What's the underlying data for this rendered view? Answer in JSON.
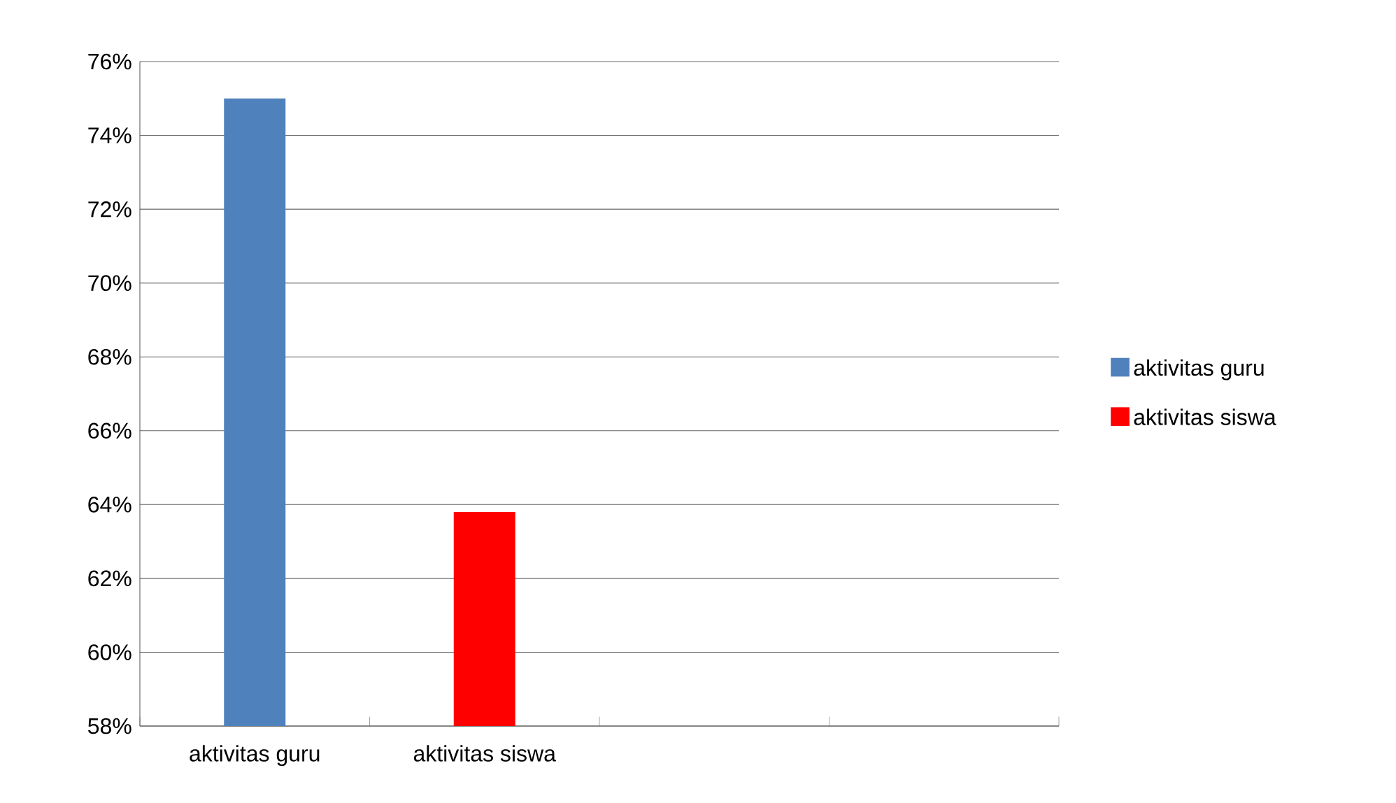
{
  "chart_data": {
    "type": "bar",
    "categories": [
      "aktivitas guru",
      "aktivitas siswa",
      null,
      null
    ],
    "series": [
      {
        "name": "aktivitas guru",
        "color": "#4f81bd",
        "values": [
          75,
          null,
          null,
          null
        ]
      },
      {
        "name": "aktivitas siswa",
        "color": "#ff0000",
        "values": [
          null,
          63.8,
          null,
          null
        ]
      }
    ],
    "ylim": [
      58,
      76
    ],
    "yticks": [
      {
        "value": 58,
        "label": "58%"
      },
      {
        "value": 60,
        "label": "60%"
      },
      {
        "value": 62,
        "label": "62%"
      },
      {
        "value": 64,
        "label": "64%"
      },
      {
        "value": 66,
        "label": "66%"
      },
      {
        "value": 68,
        "label": "68%"
      },
      {
        "value": 70,
        "label": "70%"
      },
      {
        "value": 72,
        "label": "72%"
      },
      {
        "value": 74,
        "label": "74%"
      },
      {
        "value": 76,
        "label": "76%"
      }
    ],
    "grid": "y",
    "legend": "right"
  }
}
